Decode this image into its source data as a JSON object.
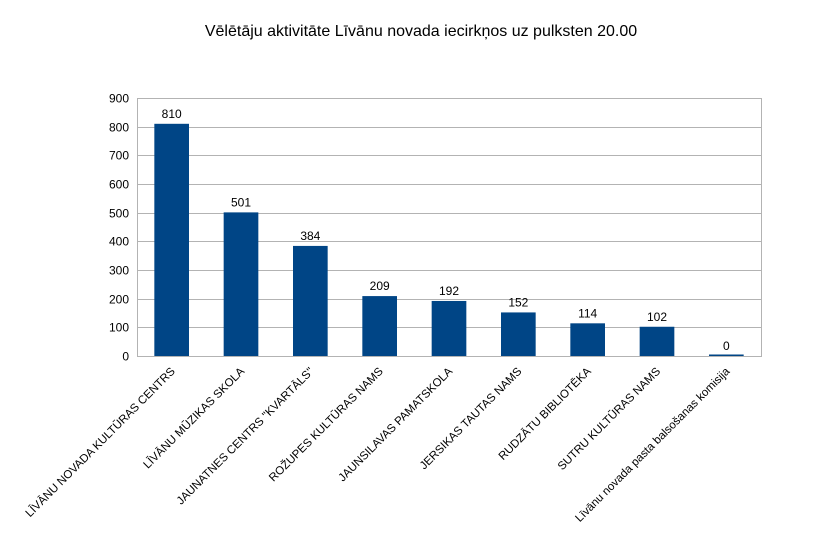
{
  "chart_data": {
    "type": "bar",
    "title": "Vēlētāju aktivitāte Līvānu novada iecirkņos uz pulksten 20.00",
    "xlabel": "",
    "ylabel": "",
    "ylim": [
      0,
      900
    ],
    "yticks": [
      0,
      100,
      200,
      300,
      400,
      500,
      600,
      700,
      800,
      900
    ],
    "grid": true,
    "legend": "none",
    "bar_color": "#004586",
    "categories": [
      "LĪVĀNU NOVADA KULTŪRAS CENTRS",
      "LĪVĀNU MŪZIKAS SKOLA",
      "JAUNATNES CENTRS \"KVARTĀLS\"",
      "ROŽUPES KULTŪRAS NAMS",
      "JAUNSILAVAS PAMATSKOLA",
      "JERSIKAS TAUTAS NAMS",
      "RUDZĀTU BIBLIOTĒKA",
      "SUTRU KULTŪRAS NAMS",
      "Līvānu novada pasta balsošanas komisija"
    ],
    "values": [
      810,
      501,
      384,
      209,
      192,
      152,
      114,
      102,
      0
    ],
    "data_labels": [
      "810",
      "501",
      "384",
      "209",
      "192",
      "152",
      "114",
      "102",
      "0"
    ]
  }
}
